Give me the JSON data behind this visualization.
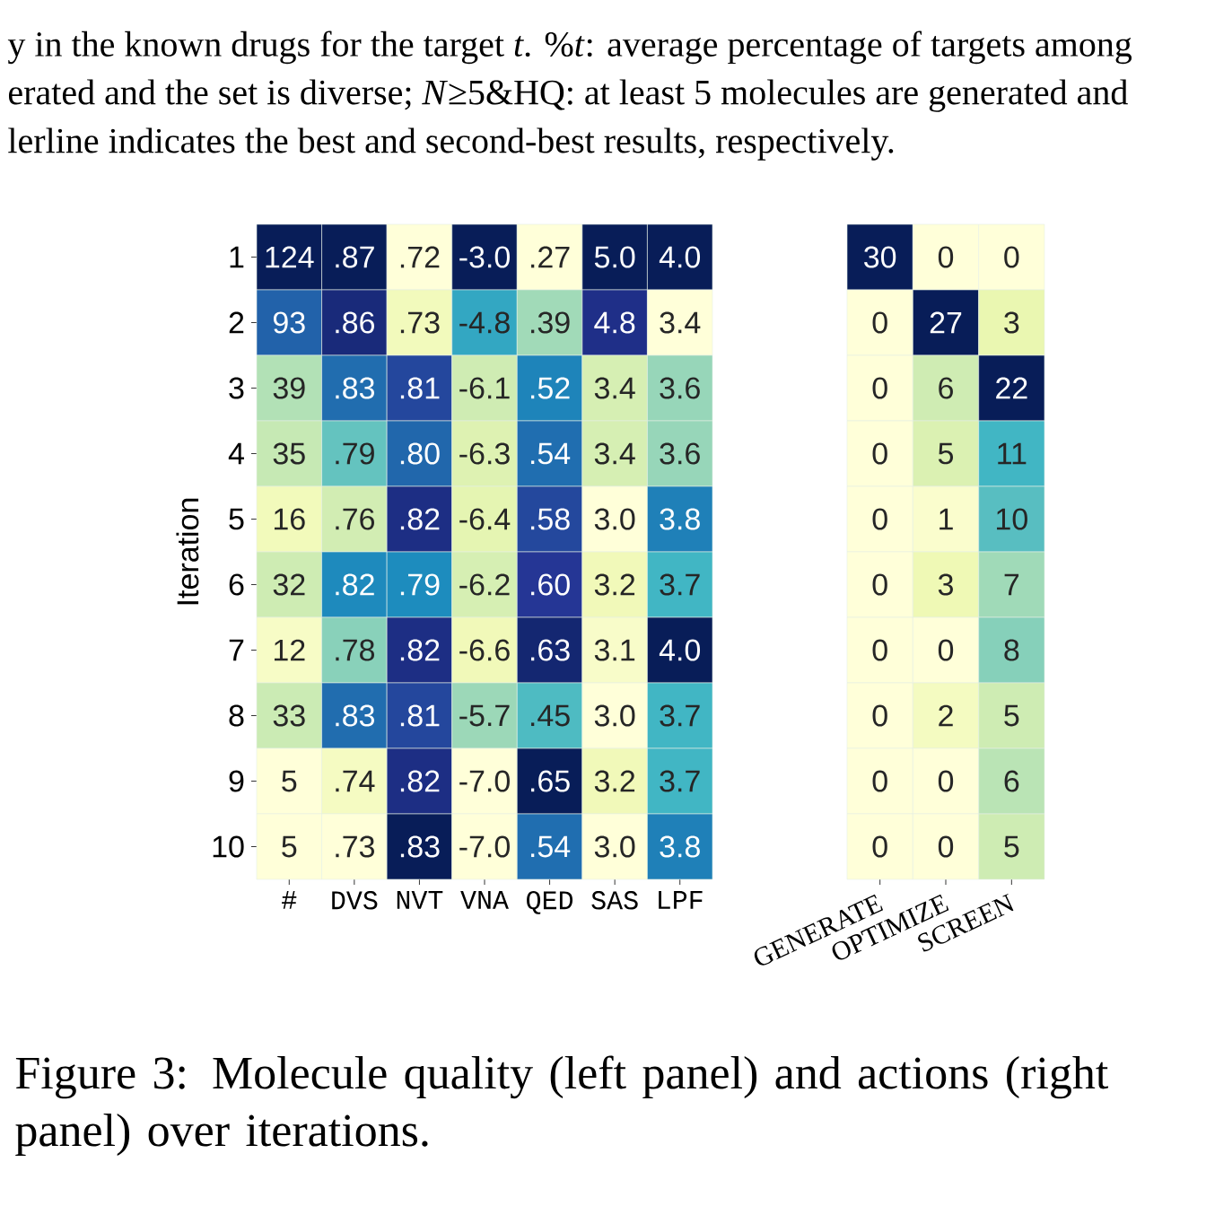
{
  "chart_data": [
    {
      "type": "heatmap",
      "ylabel": "Iteration",
      "categories": [
        "#",
        "DVS",
        "NVT",
        "VNA",
        "QED",
        "SAS",
        "LPF"
      ],
      "y_categories": [
        "1",
        "2",
        "3",
        "4",
        "5",
        "6",
        "7",
        "8",
        "9",
        "10"
      ],
      "cells": [
        [
          124,
          0.87,
          0.72,
          -3.0,
          0.27,
          5.0,
          4.0
        ],
        [
          93,
          0.86,
          0.73,
          -4.8,
          0.39,
          4.8,
          3.4
        ],
        [
          39,
          0.83,
          0.81,
          -6.1,
          0.52,
          3.4,
          3.6
        ],
        [
          35,
          0.79,
          0.8,
          -6.3,
          0.54,
          3.4,
          3.6
        ],
        [
          16,
          0.76,
          0.82,
          -6.4,
          0.58,
          3.0,
          3.8
        ],
        [
          32,
          0.82,
          0.79,
          -6.2,
          0.6,
          3.2,
          3.7
        ],
        [
          12,
          0.78,
          0.82,
          -6.6,
          0.63,
          3.1,
          4.0
        ],
        [
          33,
          0.83,
          0.81,
          -5.7,
          0.45,
          3.0,
          3.7
        ],
        [
          5,
          0.74,
          0.82,
          -7.0,
          0.65,
          3.2,
          3.7
        ],
        [
          5,
          0.73,
          0.83,
          -7.0,
          0.54,
          3.0,
          3.8
        ]
      ],
      "cell_labels": [
        [
          "124",
          ".87",
          ".72",
          "-3.0",
          ".27",
          "5.0",
          "4.0"
        ],
        [
          "93",
          ".86",
          ".73",
          "-4.8",
          ".39",
          "4.8",
          "3.4"
        ],
        [
          "39",
          ".83",
          ".81",
          "-6.1",
          ".52",
          "3.4",
          "3.6"
        ],
        [
          "35",
          ".79",
          ".80",
          "-6.3",
          ".54",
          "3.4",
          "3.6"
        ],
        [
          "16",
          ".76",
          ".82",
          "-6.4",
          ".58",
          "3.0",
          "3.8"
        ],
        [
          "32",
          ".82",
          ".79",
          "-6.2",
          ".60",
          "3.2",
          "3.7"
        ],
        [
          "12",
          ".78",
          ".82",
          "-6.6",
          ".63",
          "3.1",
          "4.0"
        ],
        [
          "33",
          ".83",
          ".81",
          "-5.7",
          ".45",
          "3.0",
          "3.7"
        ],
        [
          "5",
          ".74",
          ".82",
          "-7.0",
          ".65",
          "3.2",
          "3.7"
        ],
        [
          "5",
          ".73",
          ".83",
          "-7.0",
          ".54",
          "3.0",
          "3.8"
        ]
      ],
      "annotations": [
        "y in the known drugs for the target *t*. %*t*: average percentage of targets among",
        "erated and the set is diverse; *N*≥5&HQ: at least 5 molecules are generated and",
        "lerline indicates the best and second-best results, respectively.",
        "Figure 3: Molecule quality (left panel) and actions (right panel) over iterations."
      ]
    },
    {
      "type": "heatmap",
      "tick_labels": "x",
      "data_labels": true,
      "categories": [
        "GENERATE",
        "OPTIMIZE",
        "SCREEN"
      ],
      "y_categories": [
        "1",
        "2",
        "3",
        "4",
        "5",
        "6",
        "7",
        "8",
        "9",
        "10"
      ],
      "cells": [
        [
          30,
          0,
          0
        ],
        [
          0,
          27,
          3
        ],
        [
          0,
          6,
          22
        ],
        [
          0,
          5,
          11
        ],
        [
          0,
          1,
          10
        ],
        [
          0,
          3,
          7
        ],
        [
          0,
          0,
          8
        ],
        [
          0,
          2,
          5
        ],
        [
          0,
          0,
          6
        ],
        [
          0,
          0,
          5
        ]
      ]
    }
  ]
}
